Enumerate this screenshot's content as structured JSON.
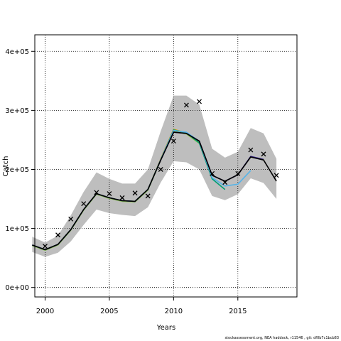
{
  "footer": "stockassessment.org, NEA haddock, r11546 , git: df0b7c1bcb83",
  "chart_data": {
    "type": "line",
    "xlabel": "Years",
    "ylabel": "Catch",
    "xlim": [
      1999.2,
      2019.6
    ],
    "ylim": [
      -16000,
      428000
    ],
    "x_ticks": [
      2000,
      2005,
      2010,
      2015
    ],
    "x_tick_labels": [
      "2000",
      "2005",
      "2010",
      "2015"
    ],
    "y_ticks": [
      0,
      100000,
      200000,
      300000,
      400000
    ],
    "y_tick_labels": [
      "0e+00",
      "1e+05",
      "2e+05",
      "3e+05",
      "4e+05"
    ],
    "grid": true,
    "colors": {
      "band": "#bebebe",
      "observed": "#000000",
      "series": [
        "#000000",
        "#332288",
        "#56b4e9",
        "#009e73",
        "#e69f00",
        "#8bc34a"
      ]
    },
    "confidence_band": {
      "x": [
        1999,
        2000,
        2001,
        2002,
        2003,
        2004,
        2005,
        2006,
        2007,
        2008,
        2009,
        2010,
        2011,
        2012,
        2013,
        2014,
        2015,
        2016,
        2017,
        2018
      ],
      "lower": [
        60000,
        52000,
        59000,
        78000,
        106000,
        132000,
        126000,
        123000,
        121000,
        136000,
        178000,
        214000,
        212000,
        200000,
        155000,
        148000,
        158000,
        185000,
        177000,
        150000
      ],
      "upper": [
        86000,
        76000,
        88000,
        122000,
        162000,
        195000,
        184000,
        176000,
        176000,
        200000,
        265000,
        325000,
        325000,
        310000,
        235000,
        220000,
        230000,
        270000,
        261000,
        218000
      ]
    },
    "observed": {
      "x": [
        2000,
        2001,
        2002,
        2003,
        2004,
        2005,
        2006,
        2007,
        2008,
        2009,
        2010,
        2011,
        2012,
        2013,
        2014,
        2015,
        2016,
        2017,
        2018
      ],
      "y": [
        70000,
        89000,
        116000,
        142000,
        161000,
        159000,
        152000,
        160000,
        155000,
        200000,
        248000,
        309000,
        315000,
        193000,
        178000,
        193000,
        233000,
        226000,
        190000
      ]
    },
    "series": [
      {
        "x": [
          1999,
          2000,
          2001,
          2002,
          2003,
          2004,
          2005,
          2006,
          2007,
          2008,
          2009,
          2010,
          2011,
          2012,
          2013,
          2014,
          2015,
          2016,
          2017,
          2018
        ],
        "values": [
          72000,
          64000,
          73000,
          98000,
          132000,
          159000,
          152000,
          147000,
          146000,
          166000,
          216000,
          263000,
          261000,
          248000,
          190000,
          180000,
          191000,
          221000,
          216000,
          180000
        ]
      },
      {
        "x": [
          1999,
          2000,
          2001,
          2002,
          2003,
          2004,
          2005,
          2006,
          2007,
          2008,
          2009,
          2010,
          2011,
          2012,
          2013,
          2014,
          2015,
          2016,
          2017
        ],
        "values": [
          72000,
          64000,
          73000,
          98000,
          132000,
          159000,
          152000,
          147000,
          146000,
          166000,
          216000,
          263000,
          261000,
          248000,
          190000,
          180000,
          191000,
          222000,
          217000
        ]
      },
      {
        "x": [
          1999,
          2000,
          2001,
          2002,
          2003,
          2004,
          2005,
          2006,
          2007,
          2008,
          2009,
          2010,
          2011,
          2012,
          2013,
          2014,
          2015,
          2016
        ],
        "values": [
          72000,
          64000,
          73000,
          98000,
          132000,
          159000,
          152000,
          147000,
          146000,
          166000,
          217000,
          266000,
          263000,
          248000,
          186000,
          172000,
          175000,
          198000
        ]
      },
      {
        "x": [
          1999,
          2000,
          2001,
          2002,
          2003,
          2004,
          2005,
          2006,
          2007,
          2008,
          2009,
          2010,
          2011,
          2012,
          2013,
          2014
        ],
        "values": [
          72000,
          64000,
          73000,
          98000,
          132000,
          159000,
          152000,
          147000,
          146000,
          166000,
          217000,
          267000,
          262000,
          245000,
          184000,
          166000
        ]
      },
      {
        "x": [
          1999,
          2000,
          2001,
          2002,
          2003,
          2004,
          2005,
          2006,
          2007,
          2008,
          2009,
          2010,
          2011,
          2012
        ],
        "values": [
          72000,
          64000,
          73000,
          98000,
          132000,
          159000,
          152000,
          147000,
          146000,
          166000,
          218000,
          268000,
          262000,
          246000
        ]
      },
      {
        "x": [
          1999,
          2000,
          2001,
          2002,
          2003,
          2004,
          2005,
          2006,
          2007,
          2008,
          2009,
          2010,
          2011,
          2012
        ],
        "values": [
          71000,
          63000,
          72000,
          97000,
          131000,
          158000,
          151000,
          146000,
          145000,
          165000,
          216000,
          265000,
          260000,
          244000
        ]
      }
    ]
  }
}
